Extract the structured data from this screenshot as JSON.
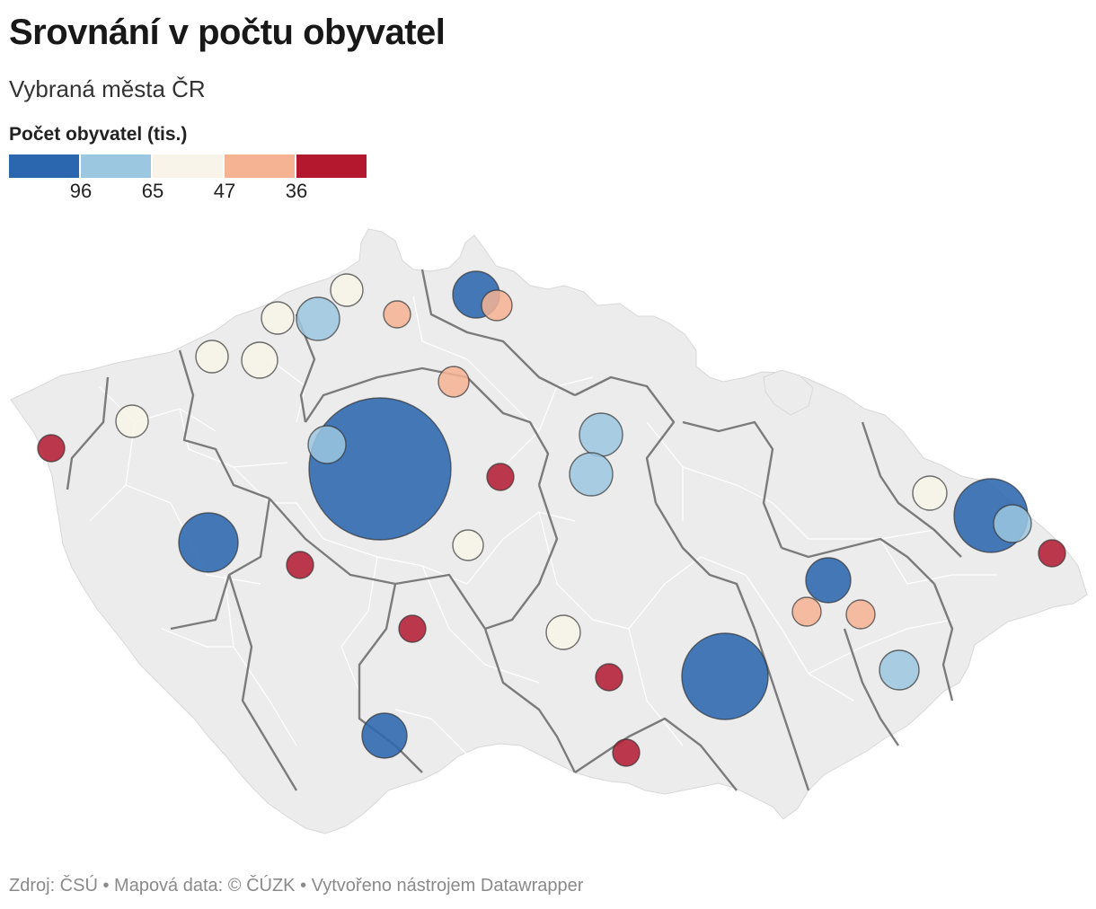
{
  "title": "Srovnání v počtu obyvatel",
  "subtitle": "Vybraná města ČR",
  "legend": {
    "title": "Počet obyvatel (tis.)",
    "colors": [
      "#2b67ae",
      "#9cc7e1",
      "#f8f4e9",
      "#f6b394",
      "#b3182f"
    ],
    "ticks": [
      "96",
      "65",
      "47",
      "36"
    ]
  },
  "footer": {
    "source": "Zdroj: ČSÚ",
    "mapdata": "Mapová data: © ČÚZK",
    "tool": "Vytvořeno nástrojem Datawrapper"
  },
  "map": {
    "land_color": "#ececec",
    "district_border_color": "#ffffff",
    "region_border_color": "#7b7b7b",
    "symbol_count": 31
  }
}
